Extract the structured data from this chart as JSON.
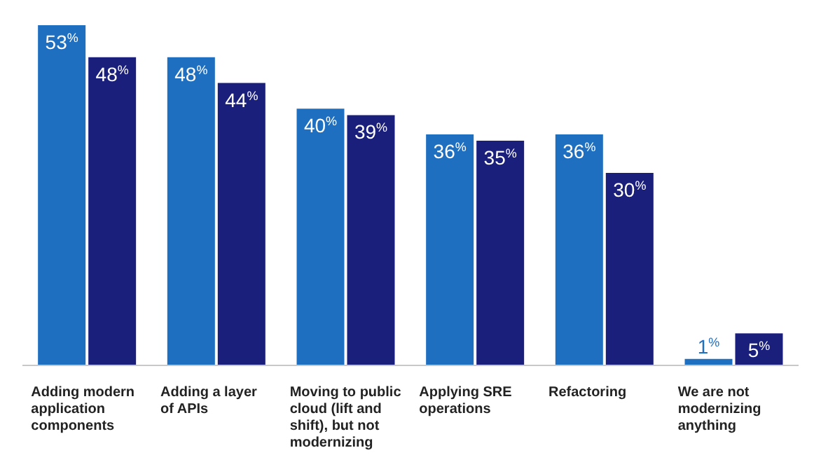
{
  "chart_data": {
    "type": "bar",
    "categories": [
      "Adding modern application components",
      "Adding a layer of APIs",
      "Moving to public cloud (lift and shift), but not modernizing",
      "Applying SRE operations",
      "Refactoring",
      "We are not modernizing anything"
    ],
    "series": [
      {
        "color": "#1f6fc1",
        "values": [
          53,
          48,
          40,
          36,
          36,
          1
        ],
        "value_labels": [
          "53$^{%}$",
          "48$^{%}$",
          "40$^{%}$",
          "36$^{%}$",
          "36$^{%}$",
          "1$^{%}$"
        ]
      },
      {
        "color": "#1b1f7c",
        "values": [
          48,
          44,
          39,
          35,
          30,
          5
        ],
        "value_labels": [
          "48$^{%}$",
          "44$^{%}$",
          "39$^{%}$",
          "35$^{%}$",
          "30$^{%}$",
          "5$^{%}$"
        ]
      }
    ]
  }
}
